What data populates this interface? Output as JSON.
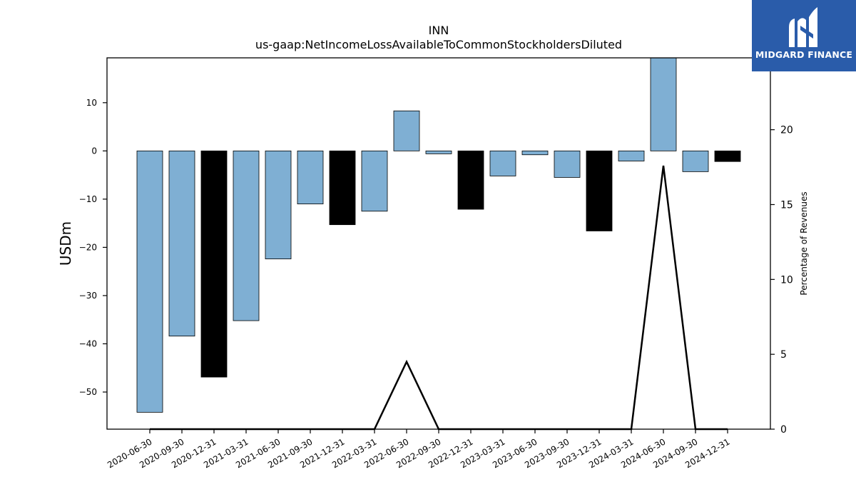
{
  "chart_data": {
    "type": "bar",
    "title": "INN",
    "subtitle": "us-gaap:NetIncomeLossAvailableToCommonStockholdersDiluted",
    "ylabel": "USDm",
    "y2label": "Percentage of Revenues",
    "ylim": [
      -57.7,
      19.3
    ],
    "y2lim": [
      0,
      24.8
    ],
    "yticks": [
      10,
      0,
      -10,
      -20,
      -30,
      -40,
      -50
    ],
    "y2ticks": [
      0,
      5,
      10,
      15,
      20
    ],
    "categories": [
      "2020-06-30",
      "2020-09-30",
      "2020-12-31",
      "2021-03-31",
      "2021-06-30",
      "2021-09-30",
      "2021-12-31",
      "2022-03-31",
      "2022-06-30",
      "2022-09-30",
      "2022-12-31",
      "2023-03-31",
      "2023-06-30",
      "2023-09-30",
      "2023-12-31",
      "2024-03-31",
      "2024-06-30",
      "2024-09-30",
      "2024-12-31"
    ],
    "values": [
      -54.2,
      -38.4,
      -46.9,
      -35.2,
      -22.4,
      -11.0,
      -15.3,
      -12.5,
      8.3,
      -0.6,
      -12.1,
      -5.2,
      -0.8,
      -5.5,
      -16.6,
      -2.1,
      19.3,
      -4.3,
      -2.2
    ],
    "annual": [
      false,
      false,
      true,
      false,
      false,
      false,
      true,
      false,
      false,
      false,
      true,
      false,
      false,
      false,
      true,
      false,
      false,
      false,
      true
    ],
    "line_series": {
      "values": [
        0,
        0,
        0,
        0,
        0,
        0,
        0,
        0,
        4.5,
        0,
        0,
        0,
        0,
        0,
        0,
        0,
        17.6,
        0,
        0
      ]
    },
    "colors": {
      "quarter_bar": "#7fafd3",
      "annual_bar": "#000000",
      "line": "#000000"
    }
  },
  "logo": {
    "text": "MIDGARD FINANCE",
    "background": "#2a5caa"
  }
}
